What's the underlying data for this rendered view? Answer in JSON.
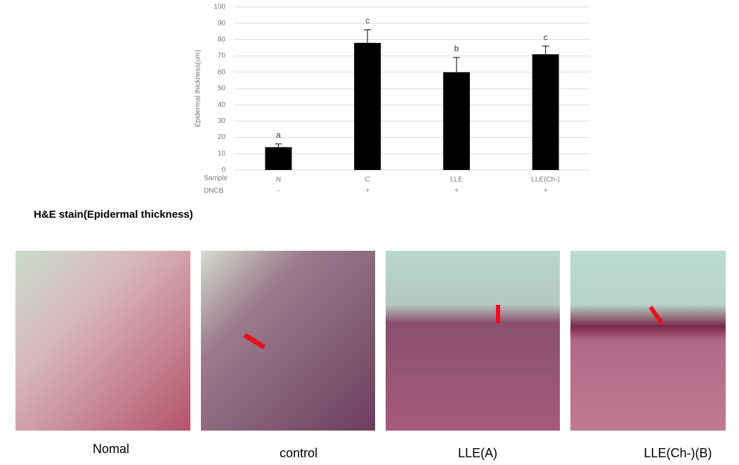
{
  "chart_data": {
    "type": "bar",
    "y_label": "Epidermal thickness(um)",
    "row_labels": [
      "Sample",
      "DNCB"
    ],
    "categories": [
      "N",
      "C",
      "LLE",
      "LLE(Ch-)"
    ],
    "dncb": [
      "-",
      "+",
      "+",
      "+"
    ],
    "values": [
      14,
      78,
      60,
      71
    ],
    "errors": [
      2,
      8,
      9,
      5
    ],
    "annotations": [
      "a",
      "c",
      "b",
      "c"
    ],
    "color": "#000000",
    "ylim": [
      0,
      100
    ],
    "yticks": [
      0,
      10,
      20,
      30,
      40,
      50,
      60,
      70,
      80,
      90,
      100
    ],
    "grid": true
  },
  "figure": {
    "title": "H&E stain(Epidermal thickness)",
    "captions": [
      "Nomal",
      "control",
      "LLE(A)",
      "LLE(Ch-)(B)"
    ]
  }
}
